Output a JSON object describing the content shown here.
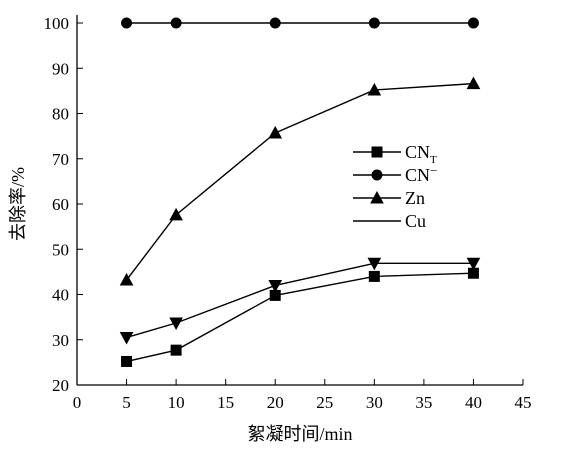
{
  "chart_data": {
    "type": "line",
    "xlabel": "絮凝时间/min",
    "ylabel": "去除率/%",
    "xlim": [
      0,
      45
    ],
    "ylim": [
      20,
      100
    ],
    "xticks": [
      0,
      5,
      10,
      15,
      20,
      25,
      30,
      35,
      40,
      45
    ],
    "yticks": [
      20,
      30,
      40,
      50,
      60,
      70,
      80,
      90,
      100
    ],
    "x": [
      5,
      10,
      20,
      30,
      40
    ],
    "legend_position": "right",
    "series": [
      {
        "name": "CN",
        "subscript": "T",
        "superscript": "",
        "marker": "square",
        "values": [
          25.2,
          27.7,
          39.8,
          44.0,
          44.7
        ]
      },
      {
        "name": "CN",
        "subscript": "",
        "superscript": "−",
        "marker": "circle",
        "values": [
          100,
          100,
          100,
          100,
          100
        ]
      },
      {
        "name": "Zn",
        "subscript": "",
        "superscript": "",
        "marker": "triangle-up",
        "values": [
          43.2,
          57.6,
          75.7,
          85.2,
          86.6
        ]
      },
      {
        "name": "Cu",
        "subscript": "",
        "superscript": "",
        "marker": "triangle-down",
        "values": [
          30.5,
          33.7,
          42.0,
          46.9,
          46.9
        ]
      }
    ]
  }
}
